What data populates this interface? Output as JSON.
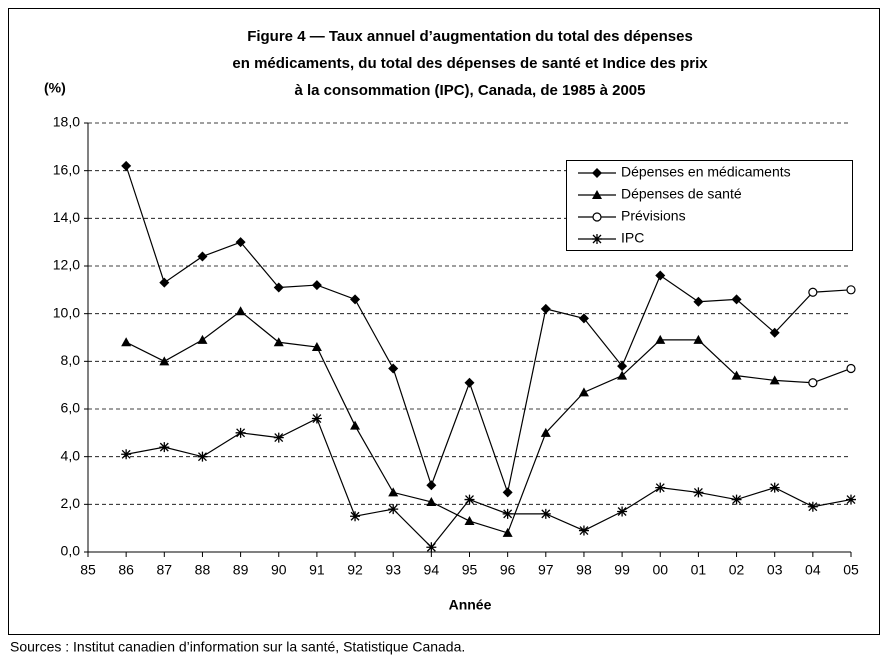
{
  "chart_data": {
    "type": "line",
    "title": [
      "Figure 4 — Taux annuel d’augmentation du total des dépenses",
      "en médicaments, du total des dépenses de santé et Indice des prix",
      "à la consommation (IPC), Canada, de 1985 à 2005"
    ],
    "ylabel": "(%)",
    "xlabel": "Année",
    "source": "Sources : Institut canadien d’information sur la santé, Statistique Canada.",
    "categories": [
      "85",
      "86",
      "87",
      "88",
      "89",
      "90",
      "91",
      "92",
      "93",
      "94",
      "95",
      "96",
      "97",
      "98",
      "99",
      "00",
      "01",
      "02",
      "03",
      "04",
      "05"
    ],
    "ylim": [
      0,
      18
    ],
    "yticks": [
      {
        "value": 0,
        "label": "0,0"
      },
      {
        "value": 2,
        "label": "2,0"
      },
      {
        "value": 4,
        "label": "4,0"
      },
      {
        "value": 6,
        "label": "6,0"
      },
      {
        "value": 8,
        "label": "8,0"
      },
      {
        "value": 10,
        "label": "10,0"
      },
      {
        "value": 12,
        "label": "12,0"
      },
      {
        "value": 14,
        "label": "14,0"
      },
      {
        "value": 16,
        "label": "16,0"
      },
      {
        "value": 18,
        "label": "18,0"
      }
    ],
    "grid": true,
    "legend": "upper right",
    "series": [
      {
        "name": "Dépenses en médicaments",
        "color": "#000000",
        "marker": "diamond",
        "values": [
          null,
          16.2,
          11.3,
          12.4,
          13.0,
          11.1,
          11.2,
          10.6,
          7.7,
          2.8,
          7.1,
          2.5,
          10.2,
          9.8,
          7.8,
          11.6,
          10.5,
          10.6,
          9.2,
          null,
          null
        ],
        "forecast": [
          null,
          null,
          null,
          null,
          null,
          null,
          null,
          null,
          null,
          null,
          null,
          null,
          null,
          null,
          null,
          null,
          null,
          null,
          null,
          10.9,
          11.0
        ]
      },
      {
        "name": "Dépenses de santé",
        "color": "#000000",
        "marker": "triangle",
        "values": [
          null,
          8.8,
          8.0,
          8.9,
          10.1,
          8.8,
          8.6,
          5.3,
          2.5,
          2.1,
          1.3,
          0.8,
          5.0,
          6.7,
          7.4,
          8.9,
          8.9,
          7.4,
          7.2,
          null,
          null
        ],
        "forecast": [
          null,
          null,
          null,
          null,
          null,
          null,
          null,
          null,
          null,
          null,
          null,
          null,
          null,
          null,
          null,
          null,
          null,
          null,
          null,
          7.1,
          7.7
        ]
      },
      {
        "name": "Prévisions",
        "color": "#000000",
        "marker": "circle"
      },
      {
        "name": "IPC",
        "color": "#000000",
        "marker": "star",
        "values": [
          null,
          4.1,
          4.4,
          4.0,
          5.0,
          4.8,
          5.6,
          1.5,
          1.8,
          0.2,
          2.2,
          1.6,
          1.6,
          0.9,
          1.7,
          2.7,
          2.5,
          2.2,
          2.7,
          1.9,
          2.2
        ]
      }
    ]
  }
}
